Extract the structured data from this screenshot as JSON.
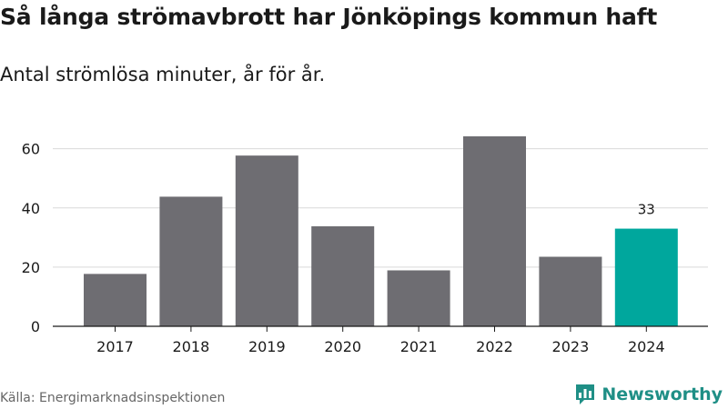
{
  "header": {
    "title": "Så långa strömavbrott har Jönköpings kommun haft",
    "subtitle": "Antal strömlösa minuter, år för år."
  },
  "footer": {
    "source": "Källa: Energimarknadsinspektionen",
    "brand": "Newsworthy",
    "brand_icon": "bar-chart-logo-icon"
  },
  "colors": {
    "bar": "#6e6d72",
    "highlight": "#00a79d",
    "grid": "#d9d9d9",
    "axis": "#1a1a1a",
    "text": "#1a1a1a",
    "brand": "#1f8f86"
  },
  "chart_data": {
    "type": "bar",
    "categories": [
      "2017",
      "2018",
      "2019",
      "2020",
      "2021",
      "2022",
      "2023",
      "2024"
    ],
    "values": [
      17.7,
      43.8,
      57.7,
      33.8,
      18.9,
      64.2,
      23.5,
      33.0
    ],
    "highlight_index": 7,
    "data_labels": [
      {
        "index": 7,
        "text": "33"
      }
    ],
    "title": "Så långa strömavbrott har Jönköpings kommun haft",
    "subtitle": "Antal strömlösa minuter, år för år.",
    "xlabel": "",
    "ylabel": "",
    "ylim": [
      0,
      64.2
    ],
    "yticks": [
      0,
      20,
      40,
      60
    ],
    "grid": true,
    "legend": "none"
  }
}
